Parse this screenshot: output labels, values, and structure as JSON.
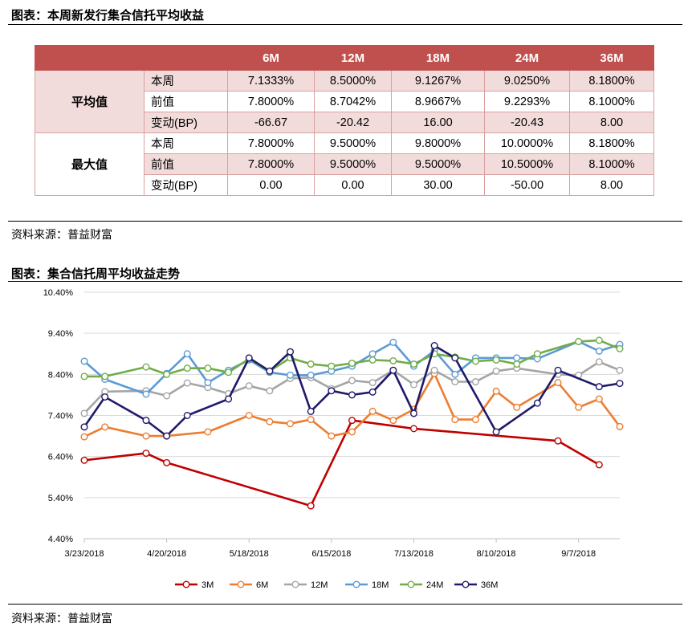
{
  "table_section": {
    "caption": "图表：本周新发行集合信托平均收益",
    "header": [
      "",
      "",
      "6M",
      "12M",
      "18M",
      "24M",
      "36M"
    ],
    "groups": [
      {
        "label": "平均值",
        "rows": [
          {
            "label": "本周",
            "values": [
              "7.1333%",
              "8.5000%",
              "9.1267%",
              "9.0250%",
              "8.1800%"
            ]
          },
          {
            "label": "前值",
            "values": [
              "7.8000%",
              "8.7042%",
              "8.9667%",
              "9.2293%",
              "8.1000%"
            ]
          },
          {
            "label": "变动(BP)",
            "values": [
              "-66.67",
              "-20.42",
              "16.00",
              "-20.43",
              "8.00"
            ]
          }
        ]
      },
      {
        "label": "最大值",
        "rows": [
          {
            "label": "本周",
            "values": [
              "7.8000%",
              "9.5000%",
              "9.8000%",
              "10.0000%",
              "8.1800%"
            ]
          },
          {
            "label": "前值",
            "values": [
              "7.8000%",
              "9.5000%",
              "9.5000%",
              "10.5000%",
              "8.1000%"
            ]
          },
          {
            "label": "变动(BP)",
            "values": [
              "0.00",
              "0.00",
              "30.00",
              "-50.00",
              "8.00"
            ]
          }
        ]
      }
    ],
    "source": "资料来源：普益财富"
  },
  "chart_section": {
    "caption": "图表：集合信托周平均收益走势",
    "source": "资料来源：普益财富"
  },
  "chart_data": {
    "type": "line",
    "title": "",
    "xlabel": "",
    "ylabel": "",
    "x_axis": {
      "type": "date",
      "min": "2018-03-23",
      "max": "2018-09-14",
      "ticks": [
        "2018-03-23",
        "2018-04-20",
        "2018-05-18",
        "2018-06-15",
        "2018-07-13",
        "2018-08-10",
        "2018-09-07"
      ],
      "tick_labels": [
        "3/23/2018",
        "4/20/2018",
        "5/18/2018",
        "6/15/2018",
        "7/13/2018",
        "8/10/2018",
        "9/7/2018"
      ]
    },
    "y_axis": {
      "min": 4.4,
      "max": 10.4,
      "ticks": [
        4.4,
        5.4,
        6.4,
        7.4,
        8.4,
        9.4,
        10.4
      ],
      "tick_labels": [
        "4.40%",
        "5.40%",
        "6.40%",
        "7.40%",
        "8.40%",
        "9.40%",
        "10.40%"
      ]
    },
    "grid": "horizontal",
    "legend": "bottom",
    "series": [
      {
        "name": "3M",
        "color": "#c00000",
        "points": [
          [
            "2018-03-23",
            6.31
          ],
          [
            "2018-04-13",
            6.48
          ],
          [
            "2018-04-20",
            6.25
          ],
          [
            "2018-06-08",
            5.2
          ],
          [
            "2018-06-22",
            7.28
          ],
          [
            "2018-07-13",
            7.08
          ],
          [
            "2018-08-31",
            6.78
          ],
          [
            "2018-09-14",
            6.2
          ]
        ]
      },
      {
        "name": "6M",
        "color": "#ed7d31",
        "points": [
          [
            "2018-03-23",
            6.88
          ],
          [
            "2018-03-30",
            7.12
          ],
          [
            "2018-04-13",
            6.9
          ],
          [
            "2018-04-20",
            6.9
          ],
          [
            "2018-05-04",
            7.0
          ],
          [
            "2018-05-18",
            7.4
          ],
          [
            "2018-05-25",
            7.25
          ],
          [
            "2018-06-01",
            7.2
          ],
          [
            "2018-06-08",
            7.3
          ],
          [
            "2018-06-15",
            6.9
          ],
          [
            "2018-06-22",
            7.0
          ],
          [
            "2018-06-29",
            7.5
          ],
          [
            "2018-07-06",
            7.28
          ],
          [
            "2018-07-13",
            7.55
          ],
          [
            "2018-07-20",
            8.42
          ],
          [
            "2018-07-27",
            7.3
          ],
          [
            "2018-08-03",
            7.3
          ],
          [
            "2018-08-10",
            7.99
          ],
          [
            "2018-08-17",
            7.6
          ],
          [
            "2018-08-31",
            8.2
          ],
          [
            "2018-09-07",
            7.6
          ],
          [
            "2018-09-14",
            7.8
          ],
          [
            "2018-09-21",
            7.13
          ]
        ]
      },
      {
        "name": "12M",
        "color": "#a5a5a5",
        "points": [
          [
            "2018-03-23",
            7.45
          ],
          [
            "2018-03-30",
            7.98
          ],
          [
            "2018-04-13",
            8.0
          ],
          [
            "2018-04-20",
            7.88
          ],
          [
            "2018-04-27",
            8.19
          ],
          [
            "2018-05-04",
            8.08
          ],
          [
            "2018-05-11",
            7.93
          ],
          [
            "2018-05-18",
            8.12
          ],
          [
            "2018-05-25",
            8.0
          ],
          [
            "2018-06-01",
            8.3
          ],
          [
            "2018-06-08",
            8.32
          ],
          [
            "2018-06-15",
            8.05
          ],
          [
            "2018-06-22",
            8.25
          ],
          [
            "2018-06-29",
            8.2
          ],
          [
            "2018-07-06",
            8.5
          ],
          [
            "2018-07-13",
            8.15
          ],
          [
            "2018-07-20",
            8.5
          ],
          [
            "2018-07-27",
            8.22
          ],
          [
            "2018-08-03",
            8.22
          ],
          [
            "2018-08-10",
            8.48
          ],
          [
            "2018-08-17",
            8.55
          ],
          [
            "2018-08-31",
            8.4
          ],
          [
            "2018-09-07",
            8.38
          ],
          [
            "2018-09-14",
            8.7042
          ],
          [
            "2018-09-21",
            8.5
          ]
        ]
      },
      {
        "name": "18M",
        "color": "#5b9bd5",
        "points": [
          [
            "2018-03-23",
            8.72
          ],
          [
            "2018-03-30",
            8.28
          ],
          [
            "2018-04-13",
            7.92
          ],
          [
            "2018-04-20",
            8.42
          ],
          [
            "2018-04-27",
            8.9
          ],
          [
            "2018-05-04",
            8.2
          ],
          [
            "2018-05-11",
            8.5
          ],
          [
            "2018-05-18",
            8.75
          ],
          [
            "2018-05-25",
            8.45
          ],
          [
            "2018-06-01",
            8.38
          ],
          [
            "2018-06-08",
            8.38
          ],
          [
            "2018-06-15",
            8.48
          ],
          [
            "2018-06-22",
            8.6
          ],
          [
            "2018-06-29",
            8.9
          ],
          [
            "2018-07-06",
            9.18
          ],
          [
            "2018-07-13",
            8.6
          ],
          [
            "2018-07-20",
            8.98
          ],
          [
            "2018-07-27",
            8.4
          ],
          [
            "2018-08-03",
            8.8
          ],
          [
            "2018-08-10",
            8.8
          ],
          [
            "2018-08-17",
            8.8
          ],
          [
            "2018-08-24",
            8.78
          ],
          [
            "2018-09-07",
            9.2
          ],
          [
            "2018-09-14",
            8.9667
          ],
          [
            "2018-09-21",
            9.1267
          ]
        ]
      },
      {
        "name": "24M",
        "color": "#70ad47",
        "points": [
          [
            "2018-03-23",
            8.35
          ],
          [
            "2018-03-30",
            8.35
          ],
          [
            "2018-04-13",
            8.58
          ],
          [
            "2018-04-20",
            8.4
          ],
          [
            "2018-04-27",
            8.55
          ],
          [
            "2018-05-04",
            8.55
          ],
          [
            "2018-05-11",
            8.45
          ],
          [
            "2018-05-18",
            8.78
          ],
          [
            "2018-05-25",
            8.48
          ],
          [
            "2018-06-01",
            8.8
          ],
          [
            "2018-06-08",
            8.65
          ],
          [
            "2018-06-15",
            8.6
          ],
          [
            "2018-06-22",
            8.67
          ],
          [
            "2018-06-29",
            8.75
          ],
          [
            "2018-07-06",
            8.73
          ],
          [
            "2018-07-13",
            8.65
          ],
          [
            "2018-07-20",
            8.9
          ],
          [
            "2018-07-27",
            8.82
          ],
          [
            "2018-08-03",
            8.72
          ],
          [
            "2018-08-10",
            8.75
          ],
          [
            "2018-08-17",
            8.65
          ],
          [
            "2018-08-24",
            8.9
          ],
          [
            "2018-09-07",
            9.2
          ],
          [
            "2018-09-14",
            9.2293
          ],
          [
            "2018-09-21",
            9.025
          ]
        ]
      },
      {
        "name": "36M",
        "color": "#1f1a6b",
        "points": [
          [
            "2018-03-23",
            7.12
          ],
          [
            "2018-03-30",
            7.85
          ],
          [
            "2018-04-13",
            7.28
          ],
          [
            "2018-04-20",
            6.9
          ],
          [
            "2018-04-27",
            7.4
          ],
          [
            "2018-05-11",
            7.8
          ],
          [
            "2018-05-18",
            8.8
          ],
          [
            "2018-05-25",
            8.48
          ],
          [
            "2018-06-01",
            8.95
          ],
          [
            "2018-06-08",
            7.5
          ],
          [
            "2018-06-15",
            8.0
          ],
          [
            "2018-06-22",
            7.9
          ],
          [
            "2018-06-29",
            7.97
          ],
          [
            "2018-07-06",
            8.5
          ],
          [
            "2018-07-13",
            7.45
          ],
          [
            "2018-07-20",
            9.1
          ],
          [
            "2018-07-27",
            8.8
          ],
          [
            "2018-08-10",
            7.0
          ],
          [
            "2018-08-24",
            7.7
          ],
          [
            "2018-08-31",
            8.5
          ],
          [
            "2018-09-14",
            8.1
          ],
          [
            "2018-09-21",
            8.18
          ]
        ]
      }
    ]
  }
}
